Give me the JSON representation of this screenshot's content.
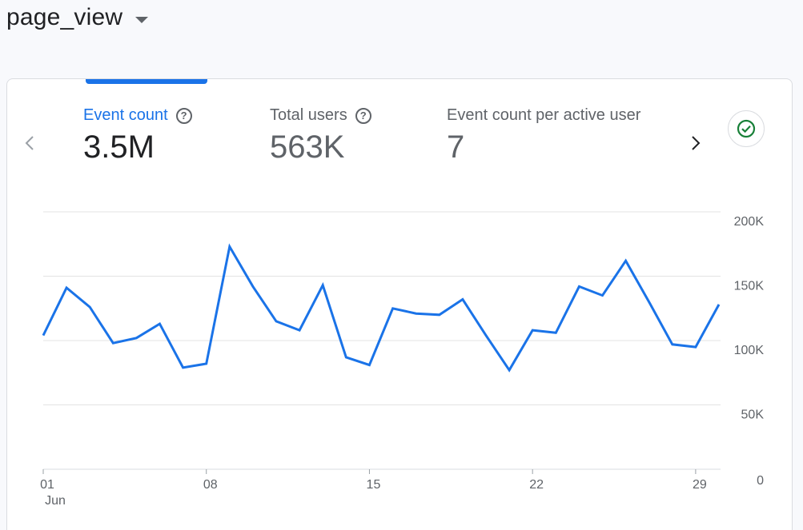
{
  "header": {
    "title": "page_view"
  },
  "metrics": [
    {
      "label": "Event count",
      "value": "3.5M"
    },
    {
      "label": "Total users",
      "value": "563K"
    },
    {
      "label": "Event count per active user",
      "value": "7"
    }
  ],
  "icons": {
    "help": "help-circle-icon",
    "prev": "chevron-left-icon",
    "next": "chevron-right-icon",
    "status": "check-circle-icon"
  },
  "colors": {
    "accent": "#1a73e8",
    "success": "#188038",
    "grid": "#e0e0e0"
  },
  "chart_data": {
    "type": "line",
    "x": [
      "Jun 1",
      "Jun 2",
      "Jun 3",
      "Jun 4",
      "Jun 5",
      "Jun 6",
      "Jun 7",
      "Jun 8",
      "Jun 9",
      "Jun 10",
      "Jun 11",
      "Jun 12",
      "Jun 13",
      "Jun 14",
      "Jun 15",
      "Jun 16",
      "Jun 17",
      "Jun 18",
      "Jun 19",
      "Jun 20",
      "Jun 21",
      "Jun 22",
      "Jun 23",
      "Jun 24",
      "Jun 25",
      "Jun 26",
      "Jun 27",
      "Jun 28",
      "Jun 29",
      "Jun 30"
    ],
    "series": [
      {
        "values": [
          104000,
          141000,
          126000,
          98000,
          102000,
          113000,
          79000,
          82000,
          173000,
          142000,
          115000,
          108000,
          143000,
          87000,
          81000,
          125000,
          121000,
          120000,
          132000,
          104000,
          77000,
          108000,
          106000,
          142000,
          135000,
          162000,
          130000,
          97000,
          95000,
          128000
        ]
      }
    ],
    "x_tick_labels": [
      {
        "label": "01",
        "sublabel": "Jun",
        "index": 0
      },
      {
        "label": "08",
        "index": 7
      },
      {
        "label": "15",
        "index": 14
      },
      {
        "label": "22",
        "index": 21
      },
      {
        "label": "29",
        "index": 28
      }
    ],
    "y_ticks": [
      {
        "value": 0,
        "label": "0"
      },
      {
        "value": 50000,
        "label": "50K"
      },
      {
        "value": 100000,
        "label": "100K"
      },
      {
        "value": 150000,
        "label": "150K"
      },
      {
        "value": 200000,
        "label": "200K"
      }
    ],
    "ylim": [
      0,
      200000
    ],
    "grid": true
  }
}
